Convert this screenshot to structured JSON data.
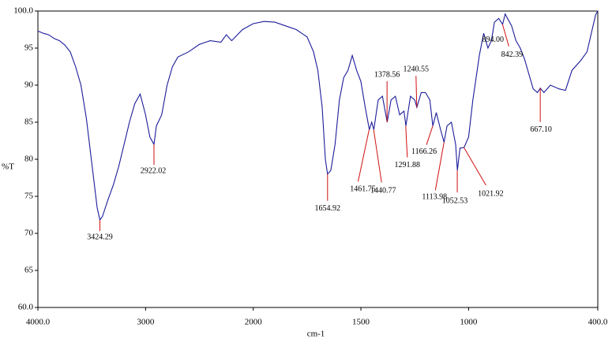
{
  "chart_data": {
    "type": "line",
    "xlabel": "cm-1",
    "ylabel": "%T",
    "xlim": [
      4000,
      400
    ],
    "ylim": [
      60,
      100
    ],
    "x_expansion": {
      "below": 2000,
      "factor": 2
    },
    "xticks": [
      {
        "value": 4000,
        "label": "4000.0"
      },
      3000,
      2000,
      1500,
      1000,
      {
        "value": 400,
        "label": "400.0"
      }
    ],
    "yticks": [
      {
        "value": 60,
        "label": "60.0"
      },
      65,
      70,
      75,
      80,
      85,
      90,
      95,
      {
        "value": 100,
        "label": "100.0"
      }
    ],
    "series": [
      {
        "color": "#1c1c9a",
        "x": [
          4000,
          3950,
          3900,
          3850,
          3800,
          3750,
          3700,
          3650,
          3600,
          3550,
          3500,
          3450,
          3424,
          3400,
          3350,
          3300,
          3250,
          3200,
          3150,
          3100,
          3050,
          3000,
          2960,
          2922,
          2900,
          2850,
          2800,
          2750,
          2700,
          2600,
          2500,
          2400,
          2300,
          2250,
          2200,
          2100,
          2000,
          1950,
          1900,
          1850,
          1800,
          1750,
          1720,
          1700,
          1680,
          1665,
          1655,
          1640,
          1620,
          1600,
          1580,
          1560,
          1540,
          1520,
          1500,
          1480,
          1461,
          1450,
          1440,
          1420,
          1400,
          1378,
          1360,
          1340,
          1320,
          1300,
          1291,
          1270,
          1250,
          1240,
          1220,
          1200,
          1180,
          1166,
          1150,
          1130,
          1114,
          1100,
          1080,
          1060,
          1052,
          1040,
          1021,
          1000,
          980,
          950,
          930,
          910,
          894,
          880,
          860,
          842,
          830,
          800,
          780,
          760,
          740,
          720,
          700,
          680,
          667,
          650,
          620,
          580,
          550,
          520,
          480,
          450,
          430,
          410,
          400
        ],
        "values": [
          97.3,
          97,
          96.8,
          96.3,
          96,
          95.4,
          94.5,
          92.5,
          90,
          85.5,
          79.5,
          73.5,
          71.8,
          72.3,
          74.5,
          76.5,
          79,
          82,
          85,
          87.5,
          88.8,
          86,
          83,
          82,
          84.5,
          86,
          90,
          92.5,
          93.8,
          94.5,
          95.5,
          96,
          95.8,
          96.8,
          96,
          97.5,
          98.3,
          98.6,
          98.5,
          98,
          97.5,
          96.5,
          94.5,
          92,
          87,
          80,
          78,
          78.5,
          82,
          88,
          91,
          92,
          94,
          92,
          90.5,
          87,
          84,
          85,
          84,
          88,
          88.5,
          85,
          88,
          88.5,
          86,
          86.5,
          84.5,
          88.5,
          88,
          87,
          89,
          89,
          88,
          84.5,
          86.3,
          84,
          82.3,
          84.5,
          85,
          82,
          78.5,
          81.5,
          81.6,
          83,
          88,
          94,
          97,
          95,
          96,
          98.5,
          99,
          98.2,
          99.6,
          98,
          96,
          95,
          93.5,
          91.5,
          89.5,
          89,
          89.6,
          89,
          90,
          89.5,
          89.3,
          92,
          93.3,
          94.5,
          97,
          99.5,
          100
        ]
      }
    ],
    "annotations": [
      {
        "x": 3424.29,
        "y": 71.8,
        "label": "3424.29"
      },
      {
        "x": 2922.02,
        "y": 82,
        "label": "2922.02"
      },
      {
        "x": 1654.92,
        "y": 78,
        "label": "1654.92"
      },
      {
        "x": 1461.75,
        "y": 84,
        "label": "1461.75"
      },
      {
        "x": 1440.77,
        "y": 84,
        "label": "1440.77"
      },
      {
        "x": 1378.56,
        "y": 85,
        "label": "1378.56"
      },
      {
        "x": 1291.88,
        "y": 84.5,
        "label": "1291.88"
      },
      {
        "x": 1240.55,
        "y": 87,
        "label": "1240.55"
      },
      {
        "x": 1166.26,
        "y": 84.5,
        "label": "1166.26"
      },
      {
        "x": 1113.98,
        "y": 82.3,
        "label": "1113.98"
      },
      {
        "x": 1052.53,
        "y": 78.5,
        "label": "1052.53"
      },
      {
        "x": 1021.92,
        "y": 81.6,
        "label": "1021.92"
      },
      {
        "x": 894,
        "y": 96,
        "label": "894.00"
      },
      {
        "x": 842.39,
        "y": 98.2,
        "label": "842.39"
      },
      {
        "x": 667.1,
        "y": 89.6,
        "label": "667.10"
      }
    ]
  }
}
